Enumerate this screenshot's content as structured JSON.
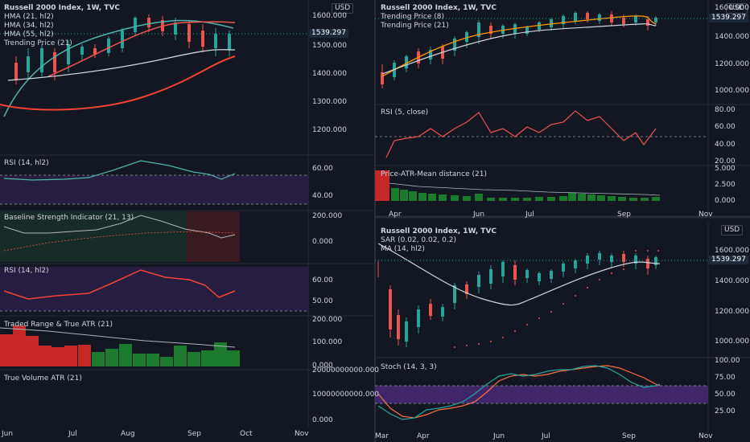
{
  "colors": {
    "bg": "#131722",
    "grid": "#2a2e39",
    "up": "#26a69a",
    "down": "#ef5350",
    "hma21": "#4db6ac",
    "hma34": "#ef5350",
    "hma55": "#d1d4dc",
    "rsi": "#f44336",
    "purple": "#2d1f4a",
    "green_bar": "#1b7a2e",
    "red_bar": "#b71c1c",
    "price_tag": "#1e2a3a"
  },
  "left": {
    "title": "Russell 2000 Index, 1W, TVC",
    "legend": [
      "HMA (21, hl2)",
      "HMA (34, hl2)",
      "HMA (55, hl2)",
      "Trending Price (21)"
    ],
    "currency": "USD",
    "price_tag": "1539.297",
    "yticks": [
      "1600.000",
      "1500.000",
      "1400.000",
      "1300.000",
      "1200.000"
    ],
    "panes": [
      {
        "title": "RSI (14, hl2)",
        "yticks": [
          "60.00",
          "40.00"
        ]
      },
      {
        "title": "Baseline Strength Indicator (21, 13)",
        "yticks": [
          "200.000",
          "0.000"
        ]
      },
      {
        "title": "RSI (14, hl2)",
        "yticks": [
          "60.00",
          "50.00"
        ]
      },
      {
        "title": "Traded Range & True ATR (21)",
        "yticks": [
          "200.000",
          "100.000",
          "0.000"
        ]
      },
      {
        "title": "True Volume ATR (21)",
        "yticks": [
          "20000000000.000",
          "10000000000.000",
          "0.000"
        ]
      }
    ],
    "xticks": [
      "Jun",
      "Jul",
      "Aug",
      "Sep",
      "Oct",
      "Nov"
    ]
  },
  "right_top": {
    "title": "Russell 2000 Index, 1W, TVC",
    "legend": [
      "Trending Price (8)",
      "Trending Price (21)"
    ],
    "currency": "USD",
    "price_tag": "1539.297",
    "yticks": [
      "1600.000",
      "1400.000",
      "1200.000",
      "1000.000"
    ],
    "panes": [
      {
        "title": "RSI (5, close)",
        "yticks": [
          "80.00",
          "60.00",
          "40.00",
          "20.00"
        ]
      },
      {
        "title": "Price-ATR-Mean distance (21)",
        "yticks": [
          "5.000",
          "2.500",
          "0.000"
        ]
      }
    ],
    "xticks": [
      "Apr",
      "Jun",
      "Jul",
      "Sep",
      "Nov"
    ]
  },
  "right_bottom": {
    "title": "Russell 2000 Index, 1W, TVC",
    "legend": [
      "SAR (0.02, 0.02, 0.2)",
      "MA (14, hl2)"
    ],
    "currency": "USD",
    "price_tag": "1539.297",
    "yticks": [
      "1600.000",
      "1400.000",
      "1200.000",
      "1000.000"
    ],
    "panes": [
      {
        "title": "Stoch (14, 3, 3)",
        "yticks": [
          "100.00",
          "75.00",
          "50.00",
          "25.00"
        ]
      }
    ],
    "xticks": [
      "Mar",
      "Apr",
      "Jun",
      "Jul",
      "Sep",
      "Nov"
    ]
  }
}
